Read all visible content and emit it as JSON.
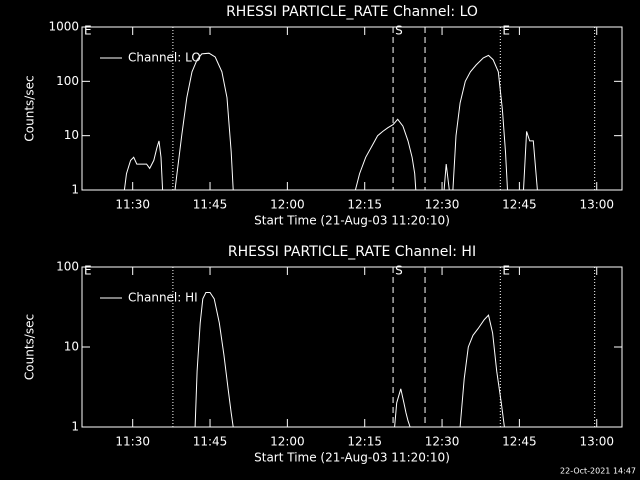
{
  "chart_data": [
    {
      "type": "line",
      "title": "RHESSI PARTICLE_RATE Channel: LO",
      "xlabel": "Start Time (21-Aug-03 11:20:10)",
      "ylabel": "Counts/sec",
      "log_y": true,
      "legend": "upper left",
      "xlim": [
        680.17,
        784.9
      ],
      "xticks": [
        {
          "value": 690,
          "label": "11:30"
        },
        {
          "value": 705,
          "label": "11:45"
        },
        {
          "value": 720,
          "label": "12:00"
        },
        {
          "value": 735,
          "label": "12:15"
        },
        {
          "value": 750,
          "label": "12:30"
        },
        {
          "value": 765,
          "label": "12:45"
        },
        {
          "value": 780,
          "label": "13:00"
        }
      ],
      "ylim": [
        1,
        1000
      ],
      "yticks": [
        1,
        10,
        100,
        1000
      ],
      "x": [
        688.4,
        688.8,
        689.6,
        690.2,
        690.8,
        692.7,
        693.3,
        694.1,
        694.7,
        695.1,
        695.5,
        695.8,
        697.0,
        698.2,
        698.6,
        699.5,
        700.5,
        701.5,
        702.5,
        703.4,
        704.8,
        706.0,
        707.3,
        708.3,
        709.1,
        709.5,
        720.0,
        733.2,
        734.0,
        735.2,
        736.6,
        737.5,
        738.5,
        739.5,
        740.5,
        741.4,
        742.4,
        743.4,
        744.2,
        744.7,
        744.9,
        747.0,
        750.4,
        750.8,
        751.4,
        751.8,
        752.1,
        752.7,
        753.5,
        754.5,
        755.5,
        756.6,
        758.0,
        759.0,
        759.9,
        760.9,
        761.7,
        762.3,
        762.7,
        764.0,
        765.8,
        766.4,
        767.0,
        767.7,
        768.5
      ],
      "series": [
        {
          "name": "Channel: LO",
          "color": "#ffffff",
          "values": [
            1,
            2,
            3.5,
            4,
            3,
            3,
            2.5,
            3.5,
            6,
            8,
            4,
            1,
            null,
            1,
            2,
            10,
            50,
            150,
            250,
            320,
            330,
            280,
            150,
            50,
            5,
            1,
            null,
            1,
            2,
            4,
            7,
            10,
            12,
            14,
            16,
            20,
            15,
            8,
            4,
            2,
            1,
            null,
            1,
            3,
            1,
            null,
            1,
            10,
            40,
            100,
            150,
            200,
            270,
            300,
            250,
            150,
            30,
            5,
            1,
            null,
            1,
            12,
            8,
            8,
            1
          ]
        }
      ],
      "vlines": [
        {
          "x": 697.8,
          "style": "dotted"
        },
        {
          "x": 740.5,
          "style": "dashed"
        },
        {
          "x": 746.7,
          "style": "dashed"
        },
        {
          "x": 761.3,
          "style": "dotted"
        },
        {
          "x": 779.6,
          "style": "dotted"
        }
      ],
      "annotations": [
        {
          "x": 680.17,
          "text": "E"
        },
        {
          "x": 740.5,
          "text": "S"
        },
        {
          "x": 761.3,
          "text": "E"
        }
      ]
    },
    {
      "type": "line",
      "title": "RHESSI PARTICLE_RATE Channel: HI",
      "xlabel": "Start Time (21-Aug-03 11:20:10)",
      "ylabel": "Counts/sec",
      "log_y": true,
      "legend": "upper left",
      "xlim": [
        680.17,
        784.9
      ],
      "xticks": [
        {
          "value": 690,
          "label": "11:30"
        },
        {
          "value": 705,
          "label": "11:45"
        },
        {
          "value": 720,
          "label": "12:00"
        },
        {
          "value": 735,
          "label": "12:15"
        },
        {
          "value": 750,
          "label": "12:30"
        },
        {
          "value": 765,
          "label": "12:45"
        },
        {
          "value": 780,
          "label": "13:00"
        }
      ],
      "ylim": [
        1,
        100
      ],
      "yticks": [
        1,
        10,
        100
      ],
      "x": [
        702.1,
        702.5,
        703.1,
        703.6,
        704.2,
        705.0,
        705.8,
        706.8,
        707.7,
        708.5,
        709.1,
        709.5,
        725.0,
        740.8,
        741.2,
        742.0,
        742.6,
        743.0,
        743.4,
        743.8,
        748.0,
        753.5,
        754.3,
        755.1,
        756.0,
        757.0,
        758.2,
        759.0,
        759.8,
        760.6,
        761.5,
        762.1
      ],
      "series": [
        {
          "name": "Channel: HI",
          "color": "#ffffff",
          "values": [
            1,
            5,
            20,
            40,
            48,
            48,
            40,
            20,
            8,
            3,
            1.5,
            1,
            null,
            1,
            2,
            3,
            2,
            1.5,
            1.2,
            1,
            null,
            1,
            4,
            10,
            14,
            17,
            22,
            25,
            15,
            5,
            2,
            1
          ]
        }
      ],
      "vlines": [
        {
          "x": 697.8,
          "style": "dotted"
        },
        {
          "x": 740.5,
          "style": "dashed"
        },
        {
          "x": 746.7,
          "style": "dashed"
        },
        {
          "x": 761.3,
          "style": "dotted"
        },
        {
          "x": 779.6,
          "style": "dotted"
        }
      ],
      "annotations": [
        {
          "x": 680.17,
          "text": "E"
        },
        {
          "x": 740.5,
          "text": "S"
        },
        {
          "x": 761.3,
          "text": "E"
        }
      ]
    }
  ],
  "footer": "22-Oct-2021 14:47"
}
